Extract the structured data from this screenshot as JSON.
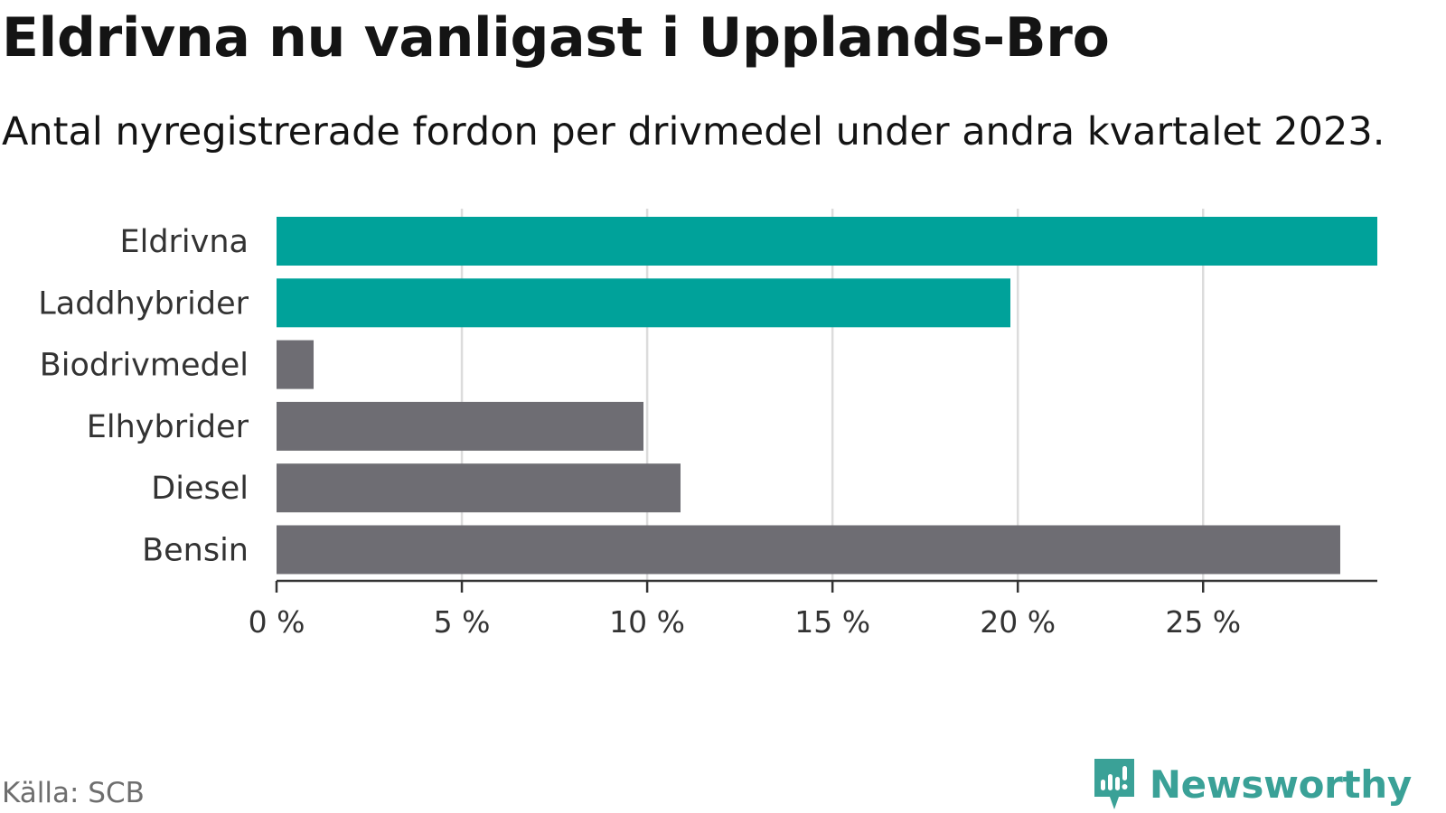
{
  "title": "Eldrivna nu vanligast i Upplands-Bro",
  "subtitle": "Antal nyregistrerade fordon per drivmedel under andra kvartalet 2023.",
  "source": "Källa: SCB",
  "brand": "Newsworthy",
  "colors": {
    "highlight": "#00a29a",
    "default": "#6e6d73",
    "grid": "#dcdcdc",
    "axis": "#333333",
    "brand": "#3aa197"
  },
  "chart_data": {
    "type": "bar",
    "orientation": "horizontal",
    "categories": [
      "Eldrivna",
      "Laddhybrider",
      "Biodrivmedel",
      "Elhybrider",
      "Diesel",
      "Bensin"
    ],
    "values": [
      29.7,
      19.8,
      1.0,
      9.9,
      10.9,
      28.7
    ],
    "highlighted": [
      true,
      true,
      false,
      false,
      false,
      false
    ],
    "xlim": [
      0,
      29.7
    ],
    "xticks": [
      0,
      5,
      10,
      15,
      20,
      25
    ],
    "xtick_labels": [
      "0 %",
      "5 %",
      "10 %",
      "15 %",
      "20 %",
      "25 %"
    ],
    "grid": true,
    "title": "Eldrivna nu vanligast i Upplands-Bro",
    "xlabel": "",
    "ylabel": ""
  }
}
